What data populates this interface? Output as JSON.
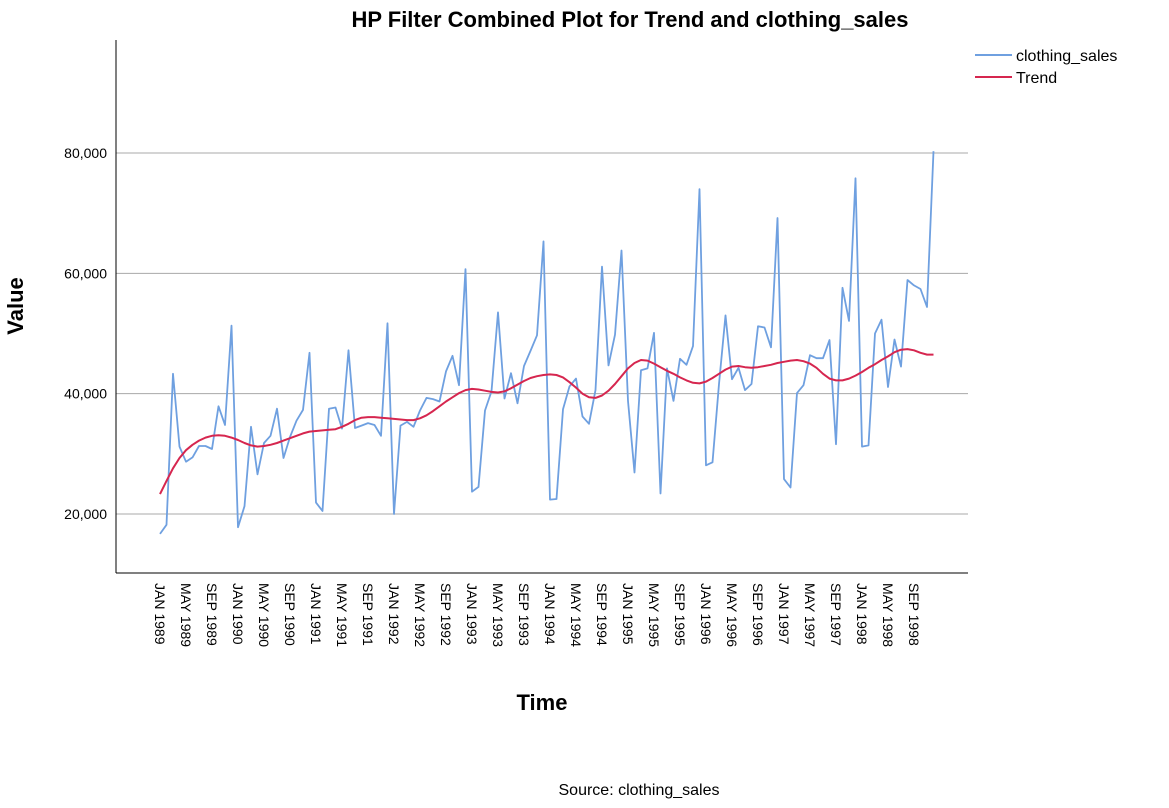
{
  "chart_data": {
    "type": "line",
    "title": "HP Filter Combined Plot for Trend and clothing_sales",
    "xlabel": "Time",
    "ylabel": "Value",
    "source": "Source: clothing_sales",
    "ylim": [
      10000,
      100000
    ],
    "y_ticks": [
      20000,
      40000,
      60000,
      80000
    ],
    "y_tick_labels": [
      "20,000",
      "40,000",
      "60,000",
      "80,000"
    ],
    "grid": true,
    "legend_position": "top-right",
    "x_tick_labels": [
      "JAN 1989",
      "MAY 1989",
      "SEP 1989",
      "JAN 1990",
      "MAY 1990",
      "SEP 1990",
      "JAN 1991",
      "MAY 1991",
      "SEP 1991",
      "JAN 1992",
      "MAY 1992",
      "SEP 1992",
      "JAN 1993",
      "MAY 1993",
      "SEP 1993",
      "JAN 1994",
      "MAY 1994",
      "SEP 1994",
      "JAN 1995",
      "MAY 1995",
      "SEP 1995",
      "JAN 1996",
      "MAY 1996",
      "SEP 1996",
      "JAN 1997",
      "MAY 1997",
      "SEP 1997",
      "JAN 1998",
      "MAY 1998",
      "SEP 1998"
    ],
    "x": [
      "1989-01",
      "1989-02",
      "1989-03",
      "1989-04",
      "1989-05",
      "1989-06",
      "1989-07",
      "1989-08",
      "1989-09",
      "1989-10",
      "1989-11",
      "1989-12",
      "1990-01",
      "1990-02",
      "1990-03",
      "1990-04",
      "1990-05",
      "1990-06",
      "1990-07",
      "1990-08",
      "1990-09",
      "1990-10",
      "1990-11",
      "1990-12",
      "1991-01",
      "1991-02",
      "1991-03",
      "1991-04",
      "1991-05",
      "1991-06",
      "1991-07",
      "1991-08",
      "1991-09",
      "1991-10",
      "1991-11",
      "1991-12",
      "1992-01",
      "1992-02",
      "1992-03",
      "1992-04",
      "1992-05",
      "1992-06",
      "1992-07",
      "1992-08",
      "1992-09",
      "1992-10",
      "1992-11",
      "1992-12",
      "1993-01",
      "1993-02",
      "1993-03",
      "1993-04",
      "1993-05",
      "1993-06",
      "1993-07",
      "1993-08",
      "1993-09",
      "1993-10",
      "1993-11",
      "1993-12",
      "1994-01",
      "1994-02",
      "1994-03",
      "1994-04",
      "1994-05",
      "1994-06",
      "1994-07",
      "1994-08",
      "1994-09",
      "1994-10",
      "1994-11",
      "1994-12",
      "1995-01",
      "1995-02",
      "1995-03",
      "1995-04",
      "1995-05",
      "1995-06",
      "1995-07",
      "1995-08",
      "1995-09",
      "1995-10",
      "1995-11",
      "1995-12",
      "1996-01",
      "1996-02",
      "1996-03",
      "1996-04",
      "1996-05",
      "1996-06",
      "1996-07",
      "1996-08",
      "1996-09",
      "1996-10",
      "1996-11",
      "1996-12",
      "1997-01",
      "1997-02",
      "1997-03",
      "1997-04",
      "1997-05",
      "1997-06",
      "1997-07",
      "1997-08",
      "1997-09",
      "1997-10",
      "1997-11",
      "1997-12",
      "1998-01",
      "1998-02",
      "1998-03",
      "1998-04",
      "1998-05",
      "1998-06",
      "1998-07",
      "1998-08",
      "1998-09",
      "1998-10",
      "1998-11",
      "1998-12"
    ],
    "series": [
      {
        "name": "clothing_sales",
        "color": "#6fa0e0",
        "values": [
          16700,
          18200,
          43300,
          31200,
          28700,
          29400,
          31300,
          31300,
          30800,
          37900,
          34800,
          51300,
          17800,
          21300,
          34500,
          26600,
          31800,
          33000,
          37500,
          29300,
          32800,
          35500,
          37300,
          46800,
          21900,
          20500,
          37500,
          37700,
          34200,
          47200,
          34300,
          34700,
          35100,
          34800,
          33000,
          51700,
          20000,
          34700,
          35300,
          34500,
          37200,
          39300,
          39100,
          38700,
          43700,
          46300,
          41400,
          60700,
          23700,
          24500,
          37200,
          40400,
          53500,
          39200,
          43400,
          38400,
          44600,
          47100,
          49700,
          65300,
          22400,
          22500,
          37400,
          41200,
          42500,
          36200,
          35000,
          40600,
          61100,
          44700,
          49800,
          63800,
          38800,
          26900,
          43900,
          44200,
          50100,
          23400,
          44200,
          38800,
          45800,
          44800,
          47900,
          74000,
          28100,
          28600,
          41600,
          53000,
          42400,
          44300,
          40600,
          41600,
          51200,
          51000,
          47700,
          69200,
          25800,
          24400,
          40100,
          41400,
          46400,
          45900,
          45900,
          48900,
          31600,
          57600,
          52100,
          75800,
          31200,
          31400,
          50000,
          52300,
          41100,
          49000,
          44500,
          58900,
          58000,
          57400,
          54400,
          80300
        ]
      },
      {
        "name": "Trend",
        "color": "#d6264f",
        "values": [
          23300,
          25500,
          27600,
          29300,
          30600,
          31500,
          32200,
          32700,
          33000,
          33100,
          33000,
          32700,
          32300,
          31800,
          31400,
          31200,
          31300,
          31500,
          31800,
          32200,
          32600,
          33000,
          33400,
          33700,
          33800,
          33900,
          34000,
          34100,
          34500,
          35000,
          35600,
          36000,
          36100,
          36100,
          36000,
          35900,
          35800,
          35700,
          35600,
          35600,
          35900,
          36400,
          37100,
          37900,
          38700,
          39400,
          40100,
          40600,
          40800,
          40700,
          40500,
          40300,
          40200,
          40400,
          40900,
          41500,
          42100,
          42600,
          42900,
          43100,
          43200,
          43100,
          42700,
          41900,
          41000,
          40000,
          39400,
          39300,
          39700,
          40500,
          41600,
          42900,
          44200,
          45100,
          45600,
          45500,
          45000,
          44400,
          43800,
          43300,
          42700,
          42200,
          41800,
          41700,
          42000,
          42600,
          43300,
          44000,
          44500,
          44600,
          44400,
          44300,
          44400,
          44600,
          44800,
          45100,
          45300,
          45500,
          45600,
          45400,
          45000,
          44300,
          43300,
          42500,
          42200,
          42200,
          42500,
          43000,
          43600,
          44300,
          44900,
          45600,
          46200,
          46900,
          47300,
          47400,
          47200,
          46800,
          46500,
          46500
        ]
      }
    ]
  }
}
